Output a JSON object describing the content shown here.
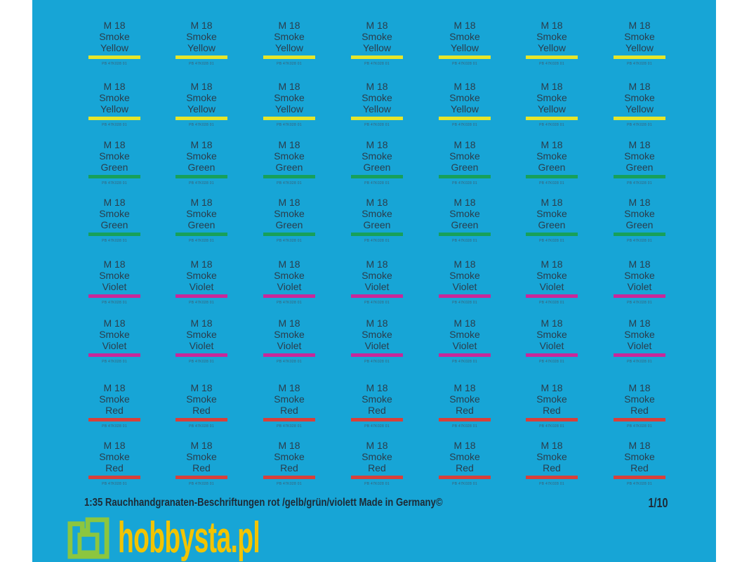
{
  "sheet": {
    "background": "#17a5d6",
    "rows": [
      {
        "line1": "M 18",
        "line2": "Smoke",
        "line3": "Yellow",
        "color": "#e6e62a",
        "code": "PB 47K028 01"
      },
      {
        "line1": "M 18",
        "line2": "Smoke",
        "line3": "Yellow",
        "color": "#e6e62a",
        "code": "PB 47K028 01"
      },
      {
        "line1": "M 18",
        "line2": "Smoke",
        "line3": "Green",
        "color": "#17a05a",
        "code": "PB 47K028 01"
      },
      {
        "line1": "M 18",
        "line2": "Smoke",
        "line3": "Green",
        "color": "#17a05a",
        "code": "PB 47K028 01"
      },
      {
        "line1": "M 18",
        "line2": "Smoke",
        "line3": "Violet",
        "color": "#c8289a",
        "code": "PB 47K028 01"
      },
      {
        "line1": "M 18",
        "line2": "Smoke",
        "line3": "Violet",
        "color": "#c8289a",
        "code": "PB 47K028 01"
      },
      {
        "line1": "M 18",
        "line2": "Smoke",
        "line3": "Red",
        "color": "#d8403a",
        "code": "PB 47K028 01"
      },
      {
        "line1": "M 18",
        "line2": "Smoke",
        "line3": "Red",
        "color": "#d8403a",
        "code": "PB 47K028 01"
      }
    ],
    "columns": 7
  },
  "footer": {
    "text": "1:35 Rauchhandgranaten-Beschriftungen rot /gelb/grün/violett  Made in Germany©",
    "page": "1/10"
  },
  "watermark": {
    "text": "hobbysta.pl",
    "colors": {
      "logo": "#8cc63f",
      "text": "#f2c400"
    }
  }
}
